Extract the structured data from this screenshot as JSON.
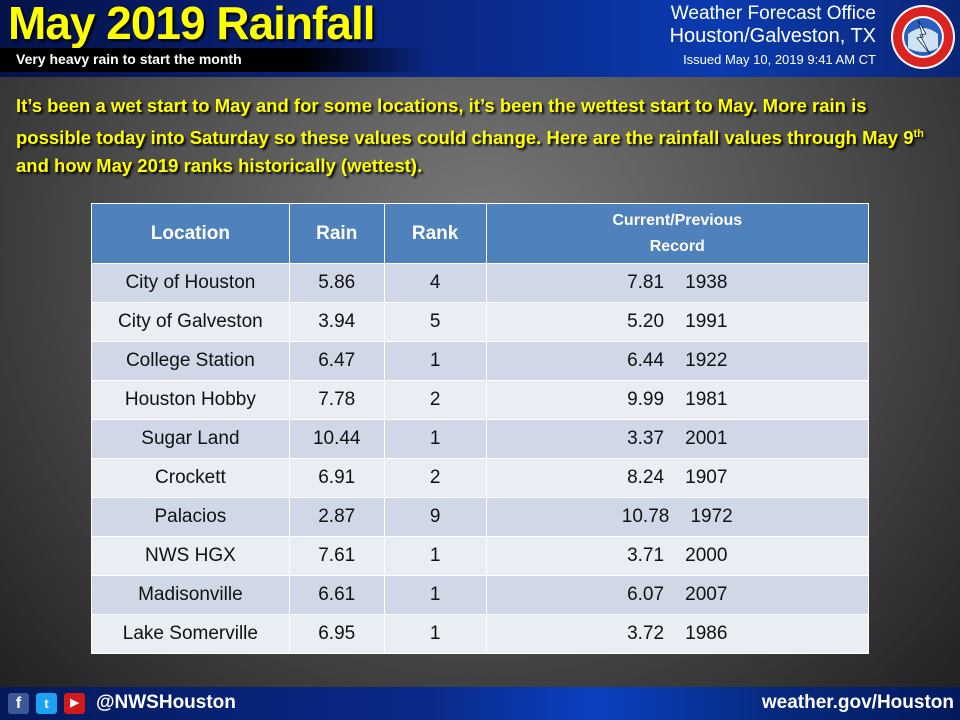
{
  "header": {
    "title": "May 2019 Rainfall",
    "subtitle": "Very heavy rain to start the month",
    "office_line1": "Weather Forecast Office",
    "office_line2": "Houston/Galveston, TX",
    "issued": "Issued May 10, 2019 9:41 AM CT",
    "logo_text": "NATIONAL WEATHER SERVICE"
  },
  "intro": {
    "text_before_sup": "It’s been a wet start to May and for some locations, it’s been the wettest start to May. More rain is possible today into Saturday so these values could change. Here are the rainfall values through May 9",
    "sup": "th",
    "text_after_sup": " and how May 2019 ranks historically (wettest)."
  },
  "table": {
    "headers": [
      "Location",
      "Rain",
      "Rank",
      "Current/Previous",
      "Record"
    ],
    "rows": [
      [
        "City of Houston",
        "5.86",
        "4",
        "7.81    1938"
      ],
      [
        "City of Galveston",
        "3.94",
        "5",
        "5.20    1991"
      ],
      [
        "College Station",
        "6.47",
        "1",
        "6.44    1922"
      ],
      [
        "Houston Hobby",
        "7.78",
        "2",
        "9.99    1981"
      ],
      [
        "Sugar Land",
        "10.44",
        "1",
        "3.37    2001"
      ],
      [
        "Crockett",
        "6.91",
        "2",
        "8.24    1907"
      ],
      [
        "Palacios",
        "2.87",
        "9",
        "10.78    1972"
      ],
      [
        "NWS HGX",
        "7.61",
        "1",
        "3.71    2000"
      ],
      [
        "Madisonville",
        "6.61",
        "1",
        "6.07    2007"
      ],
      [
        "Lake Somerville",
        "6.95",
        "1",
        "3.72    1986"
      ]
    ]
  },
  "footer": {
    "handle": "@NWSHouston",
    "website": "weather.gov/Houston",
    "icons": [
      "facebook-icon",
      "twitter-icon",
      "youtube-icon"
    ]
  },
  "colors": {
    "title": "#ffff00",
    "table_header": "#4f81bd",
    "row_odd": "#d0d8e8",
    "row_even": "#e9edf4"
  }
}
